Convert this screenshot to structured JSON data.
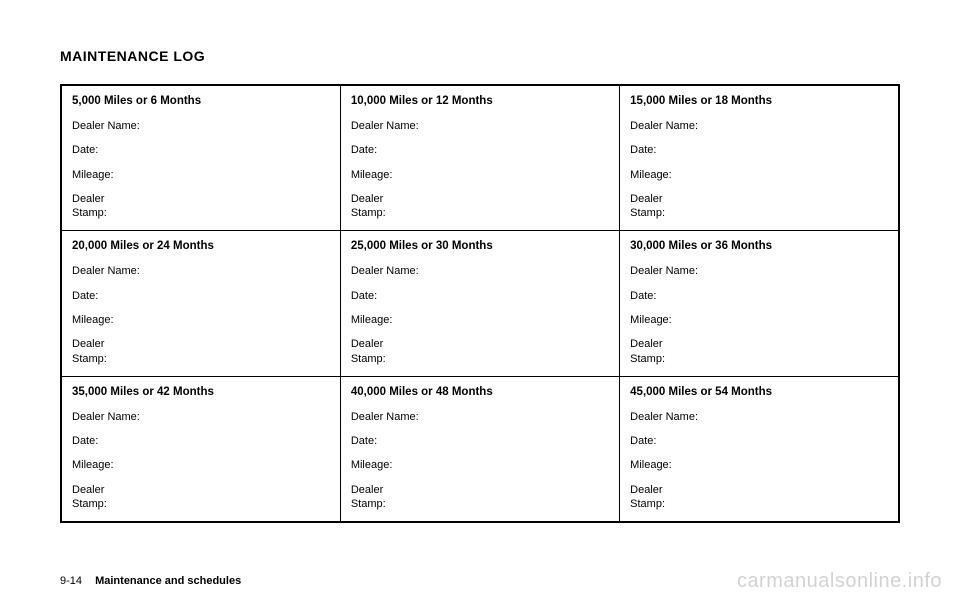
{
  "section_title": "MAINTENANCE LOG",
  "fields": {
    "dealer_name": "Dealer Name:",
    "date": "Date:",
    "mileage": "Mileage:",
    "dealer_stamp_line1": "Dealer",
    "dealer_stamp_line2": "Stamp:"
  },
  "grid": {
    "rows": 3,
    "cols": 3,
    "cells": [
      {
        "heading": "5,000 Miles or 6 Months"
      },
      {
        "heading": "10,000 Miles or 12 Months"
      },
      {
        "heading": "15,000 Miles or 18 Months"
      },
      {
        "heading": "20,000 Miles or 24 Months"
      },
      {
        "heading": "25,000 Miles or 30 Months"
      },
      {
        "heading": "30,000 Miles or 36 Months"
      },
      {
        "heading": "35,000 Miles or 42 Months"
      },
      {
        "heading": "40,000 Miles or 48 Months"
      },
      {
        "heading": "45,000 Miles or 54 Months"
      }
    ]
  },
  "footer": {
    "page_number": "9-14",
    "chapter": "Maintenance and schedules"
  },
  "watermark": "carmanualsonline.info"
}
